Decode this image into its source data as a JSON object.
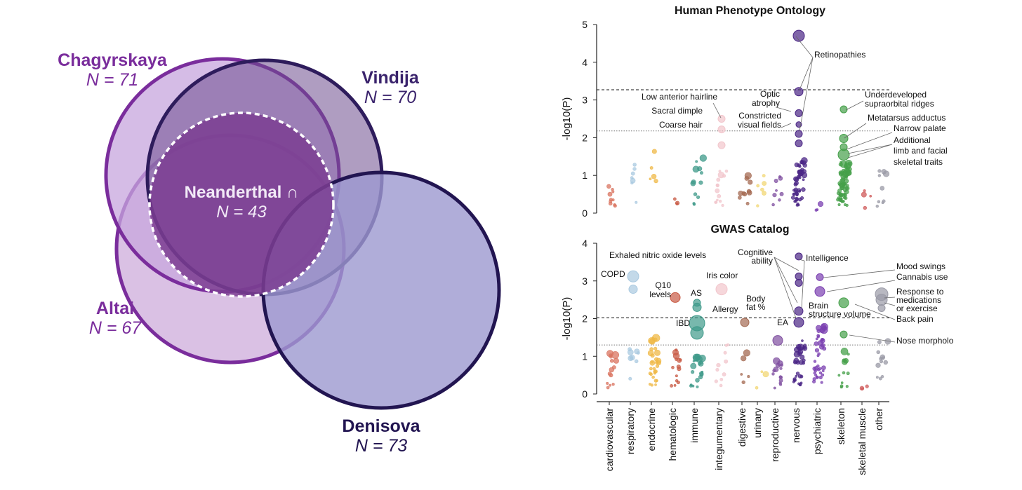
{
  "venn": {
    "sets": [
      {
        "name": "Chagyrskaya",
        "n_label": "N = 71",
        "color": "#7a3a9e"
      },
      {
        "name": "Vindija",
        "n_label": "N = 70",
        "color": "#4a2a78"
      },
      {
        "name": "Altai",
        "n_label": "N = 67",
        "color": "#7a3a9e"
      },
      {
        "name": "Denisova",
        "n_label": "N = 73",
        "color": "#2a1858"
      }
    ],
    "intersection": {
      "label": "Neanderthal ∩",
      "n_label": "N = 43"
    }
  },
  "chart_data": [
    {
      "type": "scatter",
      "title": "Human Phenotype Ontology",
      "xlabel": "",
      "ylabel": "-log10(P)",
      "ylim": [
        0,
        5
      ],
      "yticks": [
        0,
        1,
        2,
        3,
        4,
        5
      ],
      "thresholds": {
        "dashed": 3.27,
        "dotted": 2.18
      },
      "categories": [
        "cardiovascular",
        "respiratory",
        "endocrine",
        "hematologic",
        "immune",
        "integumentary",
        "digestive",
        "urinary",
        "reproductive",
        "nervous",
        "psychiatric",
        "skeleton",
        "skeletal muscle",
        "other"
      ],
      "highlighted": [
        {
          "category": "nervous",
          "y": 4.7,
          "size": 8
        },
        {
          "category": "nervous",
          "y": 3.22,
          "size": 6
        },
        {
          "category": "nervous",
          "y": 2.65,
          "size": 5
        },
        {
          "category": "nervous",
          "y": 2.35,
          "size": 4
        },
        {
          "category": "nervous",
          "y": 2.1,
          "size": 5
        },
        {
          "category": "nervous",
          "y": 1.85,
          "size": 5
        },
        {
          "category": "integumentary",
          "y": 2.5,
          "size": 5
        },
        {
          "category": "integumentary",
          "y": 2.22,
          "size": 5
        },
        {
          "category": "integumentary",
          "y": 1.8,
          "size": 5
        },
        {
          "category": "skeleton",
          "y": 2.75,
          "size": 5
        },
        {
          "category": "skeleton",
          "y": 1.98,
          "size": 6
        },
        {
          "category": "skeleton",
          "y": 1.75,
          "size": 5
        },
        {
          "category": "skeleton",
          "y": 1.55,
          "size": 8
        }
      ],
      "annotations": [
        {
          "text": "Retinopathies",
          "x_category": "nervous",
          "y": 4.2
        },
        {
          "text": "Low anterior hairline",
          "x_category": "integumentary",
          "y": 3.05
        },
        {
          "text": "Optic",
          "x_category": "nervous",
          "y": 3.15
        },
        {
          "text": "atrophy",
          "x_category": "nervous",
          "y": 2.92
        },
        {
          "text": "Sacral dimple",
          "x_category": "integumentary",
          "y": 2.65
        },
        {
          "text": "Constricted",
          "x_category": "nervous",
          "y": 2.57
        },
        {
          "text": "visual fields",
          "x_category": "nervous",
          "y": 2.35
        },
        {
          "text": "Coarse hair",
          "x_category": "integumentary",
          "y": 2.28
        },
        {
          "text": "Underdeveloped",
          "x_category": "skeleton",
          "y": 3.15
        },
        {
          "text": "supraorbital ridges",
          "x_category": "skeleton",
          "y": 2.92
        },
        {
          "text": "Metatarsus adductus",
          "x_category": "skeleton",
          "y": 2.52
        },
        {
          "text": "Narrow palate",
          "x_category": "skeleton",
          "y": 2.25
        },
        {
          "text": "Additional",
          "x_category": "skeleton",
          "y": 1.95
        },
        {
          "text": "limb and facial",
          "x_category": "skeleton",
          "y": 1.7
        },
        {
          "text": "skeletal traits",
          "x_category": "skeleton",
          "y": 1.45
        }
      ]
    },
    {
      "type": "scatter",
      "title": "GWAS Catalog",
      "xlabel": "",
      "ylabel": "-log10(P)",
      "ylim": [
        0,
        4
      ],
      "yticks": [
        0,
        1,
        2,
        3,
        4
      ],
      "thresholds": {
        "dashed": 2.02,
        "dotted": 1.3
      },
      "categories": [
        "cardiovascular",
        "respiratory",
        "endocrine",
        "hematologic",
        "immune",
        "integumentary",
        "digestive",
        "urinary",
        "reproductive",
        "nervous",
        "psychiatric",
        "skeleton",
        "skeletal muscle",
        "other"
      ],
      "highlighted": [
        {
          "category": "respiratory",
          "y": 3.12,
          "size": 8
        },
        {
          "category": "respiratory",
          "y": 2.78,
          "size": 6
        },
        {
          "category": "hematologic",
          "y": 2.56,
          "size": 7
        },
        {
          "category": "immune",
          "y": 2.42,
          "size": 5
        },
        {
          "category": "immune",
          "y": 2.3,
          "size": 6
        },
        {
          "category": "immune",
          "y": 1.88,
          "size": 11
        },
        {
          "category": "immune",
          "y": 1.62,
          "size": 9
        },
        {
          "category": "integumentary",
          "y": 2.78,
          "size": 8
        },
        {
          "category": "digestive",
          "y": 1.9,
          "size": 6
        },
        {
          "category": "reproductive",
          "y": 1.42,
          "size": 7
        },
        {
          "category": "nervous",
          "y": 3.65,
          "size": 5
        },
        {
          "category": "nervous",
          "y": 3.12,
          "size": 5
        },
        {
          "category": "nervous",
          "y": 2.95,
          "size": 5
        },
        {
          "category": "nervous",
          "y": 2.2,
          "size": 6
        },
        {
          "category": "nervous",
          "y": 1.9,
          "size": 7
        },
        {
          "category": "psychiatric",
          "y": 3.1,
          "size": 5
        },
        {
          "category": "psychiatric",
          "y": 2.72,
          "size": 7
        },
        {
          "category": "skeleton",
          "y": 2.42,
          "size": 7
        },
        {
          "category": "skeleton",
          "y": 1.58,
          "size": 5
        },
        {
          "category": "other",
          "y": 2.65,
          "size": 9
        },
        {
          "category": "other",
          "y": 2.5,
          "size": 8
        },
        {
          "category": "other",
          "y": 2.28,
          "size": 5
        }
      ],
      "annotations": [
        {
          "text": "Exhaled nitric oxide levels",
          "x_category": "respiratory",
          "y": 3.65
        },
        {
          "text": "COPD",
          "x_category": "cardiovascular",
          "y": 3.15
        },
        {
          "text": "Q10",
          "x_category": "endocrine",
          "y": 2.8
        },
        {
          "text": "levels",
          "x_category": "endocrine",
          "y": 2.6
        },
        {
          "text": "AS",
          "x_category": "immune",
          "y": 2.65
        },
        {
          "text": "Iris color",
          "x_category": "integumentary",
          "y": 3.1
        },
        {
          "text": "Allergy",
          "x_category": "immune",
          "y": 2.2
        },
        {
          "text": "IBD",
          "x_category": "hematologic",
          "y": 1.85
        },
        {
          "text": "Body",
          "x_category": "digestive",
          "y": 2.5
        },
        {
          "text": "fat %",
          "x_category": "digestive",
          "y": 2.3
        },
        {
          "text": "Cognitive",
          "x_category": "reproductive",
          "y": 3.75
        },
        {
          "text": "ability",
          "x_category": "reproductive",
          "y": 3.55
        },
        {
          "text": "Intelligence",
          "x_category": "psychiatric",
          "y": 3.55
        },
        {
          "text": "Brain",
          "x_category": "psychiatric",
          "y": 2.3
        },
        {
          "text": "structure volume",
          "x_category": "psychiatric",
          "y": 2.08
        },
        {
          "text": "EA",
          "x_category": "nervous",
          "y": 1.88
        },
        {
          "text": "Mood swings",
          "x_category": "other",
          "y": 3.3
        },
        {
          "text": "Cannabis use",
          "x_category": "other",
          "y": 3.05
        },
        {
          "text": "Response to",
          "x_category": "other",
          "y": 2.7
        },
        {
          "text": "medications",
          "x_category": "other",
          "y": 2.48
        },
        {
          "text": "or exercise",
          "x_category": "other",
          "y": 2.26
        },
        {
          "text": "Back pain",
          "x_category": "other",
          "y": 1.98
        },
        {
          "text": "Nose morpholo",
          "x_category": "other",
          "y": 1.4
        }
      ]
    }
  ],
  "category_colors": {
    "cardiovascular": "#d9735f",
    "respiratory": "#a9c9e0",
    "endocrine": "#efb846",
    "hematologic": "#c85a44",
    "immune": "#3f9a8a",
    "integumentary": "#f2c6cc",
    "digestive": "#a46a52",
    "urinary": "#f2d774",
    "reproductive": "#7f4fa0",
    "nervous": "#4a2585",
    "psychiatric": "#7a3fb0",
    "skeleton": "#46a04a",
    "skeletal muscle": "#cf5a5a",
    "other": "#9a9aa6"
  }
}
